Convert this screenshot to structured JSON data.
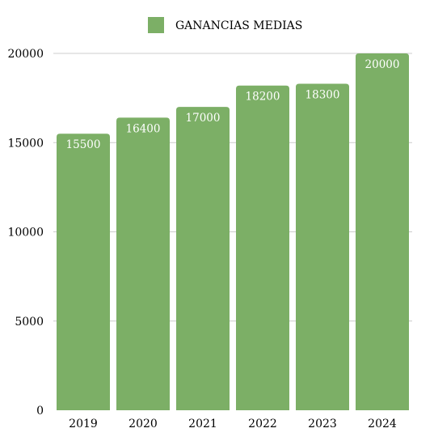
{
  "chart_data": {
    "type": "bar",
    "title": "",
    "xlabel": "",
    "ylabel": "",
    "categories": [
      "2019",
      "2020",
      "2021",
      "2022",
      "2023",
      "2024"
    ],
    "series": [
      {
        "name": "GANANCIAS MEDIAS",
        "values": [
          15500,
          16400,
          17000,
          18200,
          18300,
          20000
        ],
        "color": "#7caf66",
        "data_labels": [
          "15500",
          "16400",
          "17000",
          "18200",
          "18300",
          "20000"
        ]
      }
    ],
    "ylim": [
      0,
      20000
    ],
    "y_ticks": [
      0,
      5000,
      10000,
      15000,
      20000
    ],
    "y_tick_labels": [
      "0",
      "5000",
      "10000",
      "15000",
      "20000"
    ],
    "grid": "horizontal",
    "legend_position": "top-center",
    "data_label_color": "#ffffff"
  }
}
